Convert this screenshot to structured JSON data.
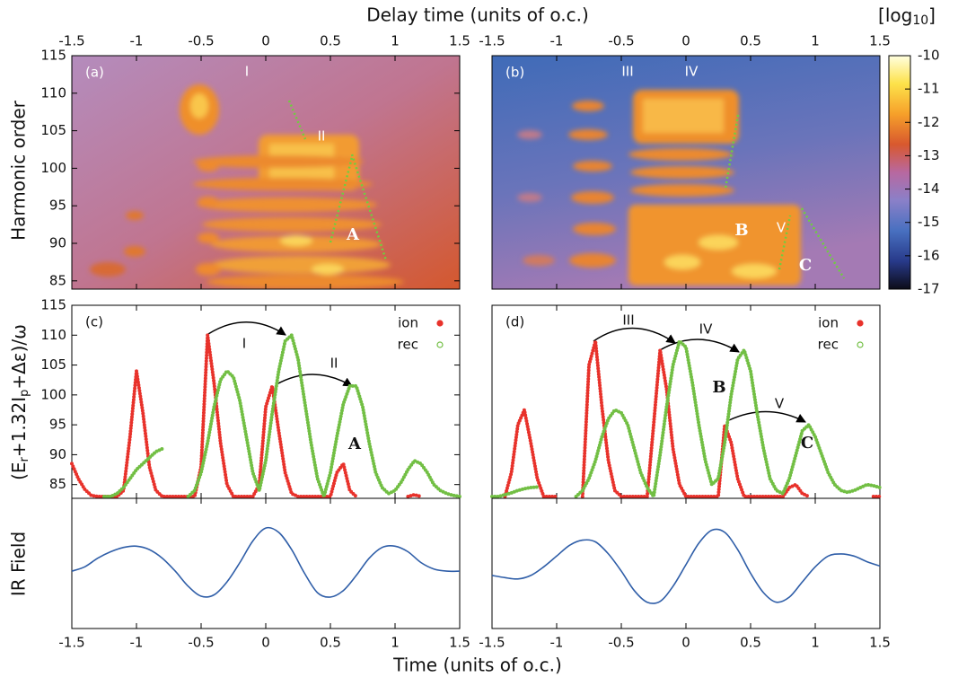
{
  "axis_labels": {
    "top": "Delay time (units of o.c.)",
    "bottom": "Time (units of o.c.)"
  },
  "chart_data": [
    {
      "type": "heatmap",
      "panel_label": "(a)",
      "y_label": "Harmonic order",
      "xlim": [
        -1.5,
        1.5
      ],
      "xticks": [
        -1.5,
        -1,
        -0.5,
        0,
        0.5,
        1,
        1.5
      ],
      "ylim": [
        83.9,
        115
      ],
      "yticks": [
        85,
        90,
        95,
        100,
        105,
        110,
        115
      ],
      "annotations": [
        "I",
        "II",
        "A"
      ]
    },
    {
      "type": "heatmap",
      "panel_label": "(b)",
      "xlim": [
        -1.5,
        1.5
      ],
      "xticks": [
        -1.5,
        -1,
        -0.5,
        0,
        0.5,
        1,
        1.5
      ],
      "ylim": [
        83.9,
        115
      ],
      "annotations": [
        "III",
        "IV",
        "B",
        "V",
        "C"
      ],
      "colorbar": {
        "label_parts": [
          "[log",
          "10",
          "]"
        ],
        "lim": [
          -17,
          -10
        ],
        "ticks": [
          -10,
          -11,
          -12,
          -13,
          -14,
          -15,
          -16,
          -17
        ]
      }
    },
    {
      "type": "scatter",
      "panel_label": "(c)",
      "y_label_parts": [
        "(E",
        "r",
        "+1.32I",
        "p",
        "+Δε)/ω"
      ],
      "xlim": [
        -1.5,
        1.5
      ],
      "ylim": [
        82.7,
        115
      ],
      "yticks": [
        85,
        90,
        95,
        100,
        105,
        110,
        115
      ],
      "x": [
        -1.5,
        -1.45,
        -1.4,
        -1.35,
        -1.3,
        -1.25,
        -1.2,
        -1.15,
        -1.1,
        -1.05,
        -1,
        -0.95,
        -0.9,
        -0.85,
        -0.8,
        -0.75,
        -0.7,
        -0.65,
        -0.6,
        -0.55,
        -0.5,
        -0.45,
        -0.4,
        -0.35,
        -0.3,
        -0.25,
        -0.2,
        -0.15,
        -0.1,
        -0.05,
        0,
        0.05,
        0.1,
        0.15,
        0.2,
        0.25,
        0.3,
        0.35,
        0.4,
        0.45,
        0.5,
        0.55,
        0.6,
        0.65,
        0.7,
        0.75,
        0.8,
        0.85,
        0.9,
        0.95,
        1,
        1.05,
        1.1,
        1.15,
        1.2,
        1.25,
        1.3,
        1.35,
        1.4,
        1.45,
        1.5
      ],
      "series": [
        {
          "name": "ion",
          "color": "#e8322b",
          "values": [
            88.5,
            86,
            84.2,
            83.2,
            83,
            83,
            83,
            83,
            84,
            93,
            104,
            97,
            88,
            84,
            83,
            83,
            83,
            83,
            83,
            83,
            88,
            110,
            102,
            92,
            85,
            83,
            83,
            83,
            83,
            85,
            98,
            101.5,
            94,
            87,
            83.5,
            83,
            83,
            83,
            83,
            83,
            83,
            87,
            88.5,
            84,
            83,
            null,
            null,
            null,
            null,
            null,
            null,
            null,
            83,
            83.3,
            83,
            null,
            null,
            null,
            null,
            null,
            null
          ]
        },
        {
          "name": "rec",
          "color": "#72bf44",
          "values": [
            null,
            null,
            null,
            null,
            null,
            83,
            83,
            83.5,
            84.5,
            86,
            87.5,
            88.5,
            89.5,
            90.5,
            91,
            null,
            null,
            null,
            83,
            84,
            87,
            92,
            98,
            102.5,
            104,
            103,
            99,
            93,
            87,
            84,
            89,
            97,
            104,
            109,
            110,
            106,
            99,
            92,
            86,
            83,
            87,
            93,
            98.5,
            101.5,
            101.5,
            98,
            92,
            87,
            84.5,
            83.5,
            84,
            85.5,
            87.5,
            89,
            88.5,
            87,
            85,
            84,
            83.5,
            83.2,
            83
          ]
        }
      ],
      "annotations": [
        "I",
        "II",
        "A"
      ]
    },
    {
      "type": "scatter",
      "panel_label": "(d)",
      "xlim": [
        -1.5,
        1.5
      ],
      "ylim": [
        82.7,
        115
      ],
      "x": [
        -1.5,
        -1.45,
        -1.4,
        -1.35,
        -1.3,
        -1.25,
        -1.2,
        -1.15,
        -1.1,
        -1.05,
        -1,
        -0.95,
        -0.9,
        -0.85,
        -0.8,
        -0.75,
        -0.7,
        -0.65,
        -0.6,
        -0.55,
        -0.5,
        -0.45,
        -0.4,
        -0.35,
        -0.3,
        -0.25,
        -0.2,
        -0.15,
        -0.1,
        -0.05,
        0,
        0.05,
        0.1,
        0.15,
        0.2,
        0.25,
        0.3,
        0.35,
        0.4,
        0.45,
        0.5,
        0.55,
        0.6,
        0.65,
        0.7,
        0.75,
        0.8,
        0.85,
        0.9,
        0.95,
        1,
        1.05,
        1.1,
        1.15,
        1.2,
        1.25,
        1.3,
        1.35,
        1.4,
        1.45,
        1.5
      ],
      "series": [
        {
          "name": "ion",
          "color": "#e8322b",
          "values": [
            null,
            null,
            83,
            87,
            95,
            97.5,
            92,
            86,
            83,
            83,
            83,
            null,
            null,
            null,
            83,
            105,
            109,
            98,
            89,
            84,
            83,
            83,
            83,
            83,
            83,
            95,
            107.5,
            101,
            91,
            85,
            83,
            83,
            83,
            83,
            83,
            83,
            95,
            92,
            86,
            83,
            83,
            83,
            83,
            83,
            83,
            83,
            84.5,
            85,
            83.5,
            83,
            null,
            null,
            null,
            null,
            null,
            null,
            null,
            null,
            null,
            83,
            83
          ]
        },
        {
          "name": "rec",
          "color": "#72bf44",
          "values": [
            83,
            83,
            83.3,
            83.6,
            84,
            84.3,
            84.5,
            84.6,
            null,
            null,
            null,
            null,
            null,
            83,
            84,
            86,
            89,
            93,
            96,
            97.5,
            97,
            95,
            91,
            87,
            84.5,
            83,
            90,
            98,
            105,
            109,
            108,
            102,
            95,
            89,
            85,
            86,
            92,
            100,
            106,
            107.5,
            104,
            97,
            91,
            86,
            84,
            83.5,
            86,
            90,
            94,
            95,
            93,
            90,
            87,
            85,
            84,
            83.7,
            84,
            84.5,
            85,
            84.8,
            84.5
          ]
        }
      ],
      "annotations": [
        "III",
        "IV",
        "B",
        "V",
        "C"
      ]
    },
    {
      "type": "line",
      "y_label": "IR Field",
      "xlim": [
        -1.5,
        1.5
      ],
      "xticks": [
        -1.5,
        -1,
        -0.5,
        0,
        0.5,
        1,
        1.5
      ],
      "ylim": [
        -1.33,
        1.69
      ],
      "x": [
        -1.5,
        -1.4,
        -1.3,
        -1.2,
        -1.1,
        -1,
        -0.9,
        -0.8,
        -0.7,
        -0.6,
        -0.5,
        -0.4,
        -0.3,
        -0.2,
        -0.1,
        0,
        0.1,
        0.2,
        0.3,
        0.4,
        0.5,
        0.6,
        0.7,
        0.8,
        0.9,
        1,
        1.1,
        1.2,
        1.3,
        1.4,
        1.5
      ],
      "series": [
        {
          "color": "#2f5ea8",
          "values": [
            0,
            0.1,
            0.3,
            0.45,
            0.55,
            0.58,
            0.5,
            0.3,
            0,
            -0.35,
            -0.58,
            -0.55,
            -0.25,
            0.2,
            0.7,
            1,
            0.9,
            0.5,
            -0.05,
            -0.5,
            -0.6,
            -0.45,
            -0.1,
            0.3,
            0.55,
            0.58,
            0.45,
            0.2,
            0.05,
            0,
            0
          ]
        }
      ]
    },
    {
      "type": "line",
      "xlim": [
        -1.5,
        1.5
      ],
      "xticks": [
        -1.5,
        -1,
        -0.5,
        0,
        0.5,
        1,
        1.5
      ],
      "ylim": [
        -1.33,
        1.69
      ],
      "x": [
        -1.5,
        -1.4,
        -1.3,
        -1.2,
        -1.1,
        -1,
        -0.9,
        -0.8,
        -0.7,
        -0.6,
        -0.5,
        -0.4,
        -0.3,
        -0.2,
        -0.1,
        0,
        0.1,
        0.2,
        0.3,
        0.4,
        0.5,
        0.6,
        0.7,
        0.8,
        0.9,
        1,
        1.1,
        1.2,
        1.3,
        1.4,
        1.5
      ],
      "series": [
        {
          "color": "#2f5ea8",
          "values": [
            -0.1,
            -0.15,
            -0.18,
            -0.1,
            0.1,
            0.35,
            0.6,
            0.72,
            0.68,
            0.4,
            0,
            -0.45,
            -0.72,
            -0.7,
            -0.35,
            0.15,
            0.65,
            0.95,
            0.9,
            0.5,
            -0.05,
            -0.5,
            -0.72,
            -0.6,
            -0.25,
            0.1,
            0.35,
            0.4,
            0.35,
            0.22,
            0.12
          ]
        }
      ]
    }
  ]
}
